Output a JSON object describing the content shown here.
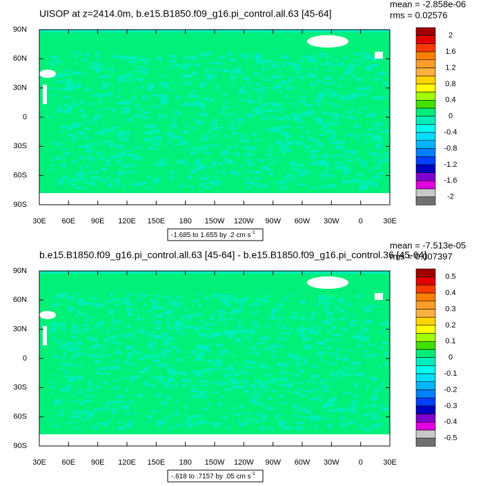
{
  "chart_data": [
    {
      "type": "map",
      "title": "UISOP at z=2414.0m, b.e15.B1850.f09_g16.pi_control.all.63 [45-64]",
      "mean": "mean = -2.858e-06",
      "rms": "rms = 0.02576",
      "xlim": [
        30,
        390
      ],
      "xticks": [
        {
          "value": 30,
          "label": "30E"
        },
        {
          "value": 60,
          "label": "60E"
        },
        {
          "value": 90,
          "label": "90E"
        },
        {
          "value": 120,
          "label": "120E"
        },
        {
          "value": 150,
          "label": "150E"
        },
        {
          "value": 180,
          "label": "180"
        },
        {
          "value": 210,
          "label": "150W"
        },
        {
          "value": 240,
          "label": "120W"
        },
        {
          "value": 270,
          "label": "90W"
        },
        {
          "value": 300,
          "label": "60W"
        },
        {
          "value": 330,
          "label": "30W"
        },
        {
          "value": 360,
          "label": "0"
        },
        {
          "value": 390,
          "label": "30E"
        }
      ],
      "ylim": [
        -90,
        90
      ],
      "yticks": [
        {
          "value": 90,
          "label": "90N"
        },
        {
          "value": 60,
          "label": "60N"
        },
        {
          "value": 30,
          "label": "30N"
        },
        0,
        {
          "value": -30,
          "label": "30S"
        },
        {
          "value": -60,
          "label": "60S"
        },
        {
          "value": -90,
          "label": "90S"
        }
      ],
      "info": "-1.685 to 1.655 by .2 cm s",
      "info_sup": "-1",
      "colorbar_ticks": [
        2,
        1.6,
        1.2,
        0.8,
        0.4,
        0,
        -0.4,
        -0.8,
        -1.2,
        -1.6,
        -2
      ],
      "colors": [
        "#a00000",
        "#e00000",
        "#ff3a00",
        "#ff7f00",
        "#ff9e2a",
        "#ffb040",
        "#ffd400",
        "#ffff00",
        "#a0ff00",
        "#40e000",
        "#00ee78",
        "#00eebb",
        "#00ffee",
        "#00ddff",
        "#00b4ff",
        "#0080ff",
        "#0040ff",
        "#0000c0",
        "#8000d0",
        "#e000e0",
        "#c8c8c8",
        "#707070"
      ]
    },
    {
      "type": "map",
      "title": "b.e15.B1850.f09_g16.pi_control.all.63 [45-64] - b.e15.B1850.f09_g16.pi_control.36 [45-64]",
      "mean": "mean = -7.513e-05",
      "rms": "rms = 0.007397",
      "xlim": [
        30,
        390
      ],
      "xticks": [
        {
          "value": 30,
          "label": "30E"
        },
        {
          "value": 60,
          "label": "60E"
        },
        {
          "value": 90,
          "label": "90E"
        },
        {
          "value": 120,
          "label": "120E"
        },
        {
          "value": 150,
          "label": "150E"
        },
        {
          "value": 180,
          "label": "180"
        },
        {
          "value": 210,
          "label": "150W"
        },
        {
          "value": 240,
          "label": "120W"
        },
        {
          "value": 270,
          "label": "90W"
        },
        {
          "value": 300,
          "label": "60W"
        },
        {
          "value": 330,
          "label": "30W"
        },
        {
          "value": 360,
          "label": "0"
        },
        {
          "value": 390,
          "label": "30E"
        }
      ],
      "ylim": [
        -90,
        90
      ],
      "yticks": [
        {
          "value": 90,
          "label": "90N"
        },
        {
          "value": 60,
          "label": "60N"
        },
        {
          "value": 30,
          "label": "30N"
        },
        0,
        {
          "value": -30,
          "label": "30S"
        },
        {
          "value": -60,
          "label": "60S"
        },
        {
          "value": -90,
          "label": "90S"
        }
      ],
      "info": "-.618 to .7157 by .05 cm s",
      "info_sup": "-1",
      "colorbar_ticks": [
        0.5,
        0.4,
        0.3,
        0.2,
        0.1,
        0,
        -0.1,
        -0.2,
        -0.3,
        -0.4,
        -0.5
      ],
      "colors": [
        "#a00000",
        "#e00000",
        "#ff3a00",
        "#ff7f00",
        "#ff9e2a",
        "#ffb040",
        "#ffd400",
        "#ffff00",
        "#a0ff00",
        "#40e000",
        "#00ee78",
        "#00eebb",
        "#00ffee",
        "#00ddff",
        "#00b4ff",
        "#0080ff",
        "#0040ff",
        "#0000c0",
        "#8000d0",
        "#e000e0",
        "#c8c8c8",
        "#707070"
      ]
    }
  ]
}
